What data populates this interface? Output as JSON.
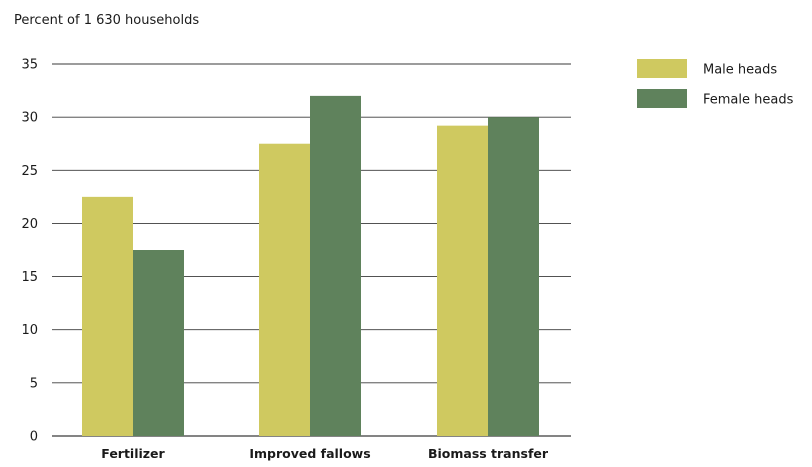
{
  "chart_data": {
    "type": "bar",
    "ylabel": "Percent of 1 630 households",
    "categories": [
      "Fertilizer",
      "Improved fallows",
      "Biomass transfer"
    ],
    "series": [
      {
        "name": "Male heads",
        "color": "#cfc960",
        "values": [
          22.5,
          27.5,
          29.2
        ]
      },
      {
        "name": "Female heads",
        "color": "#5f825c",
        "values": [
          17.5,
          32.0,
          30.0
        ]
      }
    ],
    "ylim": [
      0,
      35
    ],
    "yticks": [
      0,
      5,
      10,
      15,
      20,
      25,
      30,
      35
    ],
    "grid": true,
    "legend": "top-right"
  }
}
